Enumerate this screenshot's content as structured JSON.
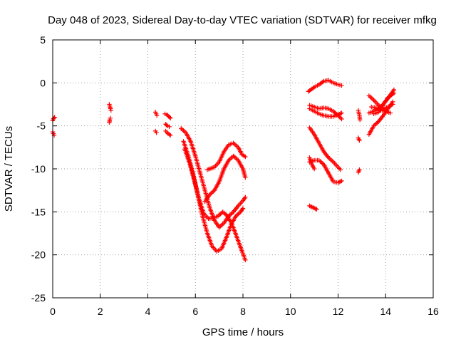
{
  "chart_data": {
    "type": "scatter",
    "title": "Day 048 of 2023, Sidereal Day-to-day VTEC variation (SDTVAR) for receiver mfkg",
    "xlabel": "GPS time / hours",
    "ylabel": "SDTVAR / TECUs",
    "xlim": [
      0,
      16
    ],
    "ylim": [
      -25,
      5
    ],
    "x_ticks": [
      0,
      2,
      4,
      6,
      8,
      10,
      12,
      14,
      16
    ],
    "y_ticks": [
      -25,
      -20,
      -15,
      -10,
      -5,
      0,
      5
    ],
    "x_tick_labels": [
      "0",
      "2",
      "4",
      "6",
      "8",
      "10",
      "12",
      "14",
      "16"
    ],
    "y_tick_labels": [
      "-25",
      "-20",
      "-15",
      "-10",
      "-5",
      "0",
      "5"
    ],
    "grid": true,
    "marker": "plus",
    "color": "#ff0000",
    "segments": [
      [
        [
          0.0,
          -4.4
        ],
        [
          0.02,
          -4.2
        ],
        [
          0.05,
          -4.1
        ],
        [
          0.08,
          -4.0
        ]
      ],
      [
        [
          0.0,
          -5.7
        ],
        [
          0.03,
          -5.9
        ],
        [
          0.06,
          -6.1
        ]
      ],
      [
        [
          2.38,
          -4.6
        ],
        [
          2.4,
          -4.3
        ],
        [
          2.42,
          -4.1
        ]
      ],
      [
        [
          2.38,
          -2.5
        ],
        [
          2.4,
          -2.7
        ],
        [
          2.43,
          -3.0
        ],
        [
          2.45,
          -3.2
        ]
      ],
      [
        [
          4.32,
          -3.4
        ],
        [
          4.35,
          -3.6
        ],
        [
          4.38,
          -3.8
        ]
      ],
      [
        [
          4.32,
          -5.6
        ],
        [
          4.36,
          -5.8
        ]
      ],
      [
        [
          4.72,
          -3.6
        ],
        [
          4.8,
          -3.7
        ],
        [
          4.88,
          -3.9
        ],
        [
          4.95,
          -4.1
        ]
      ],
      [
        [
          4.75,
          -4.8
        ],
        [
          4.82,
          -5.0
        ],
        [
          4.9,
          -5.1
        ]
      ],
      [
        [
          4.75,
          -5.6
        ],
        [
          4.85,
          -5.9
        ],
        [
          4.95,
          -6.1
        ]
      ],
      [
        [
          5.4,
          -5.3
        ],
        [
          5.6,
          -5.8
        ],
        [
          5.8,
          -6.8
        ],
        [
          6.0,
          -8.5
        ],
        [
          6.2,
          -10.5
        ],
        [
          6.4,
          -12.5
        ],
        [
          6.6,
          -14.5
        ],
        [
          6.8,
          -16.0
        ],
        [
          7.0,
          -16.8
        ],
        [
          7.2,
          -16.3
        ],
        [
          7.4,
          -15.5
        ],
        [
          7.6,
          -15.0
        ],
        [
          7.8,
          -14.3
        ],
        [
          8.0,
          -13.7
        ],
        [
          8.1,
          -13.3
        ]
      ],
      [
        [
          5.5,
          -6.8
        ],
        [
          5.7,
          -8.5
        ],
        [
          5.9,
          -10.5
        ],
        [
          6.1,
          -13.0
        ],
        [
          6.3,
          -15.5
        ],
        [
          6.5,
          -17.5
        ],
        [
          6.7,
          -19.0
        ],
        [
          6.9,
          -19.6
        ],
        [
          7.1,
          -19.3
        ],
        [
          7.3,
          -18.0
        ],
        [
          7.5,
          -16.5
        ],
        [
          7.7,
          -15.5
        ],
        [
          7.9,
          -15.0
        ],
        [
          8.0,
          -14.6
        ]
      ],
      [
        [
          5.55,
          -7.7
        ],
        [
          5.75,
          -9.3
        ],
        [
          5.95,
          -11.3
        ],
        [
          6.15,
          -13.5
        ],
        [
          6.35,
          -15.2
        ],
        [
          6.55,
          -15.8
        ],
        [
          6.75,
          -15.7
        ],
        [
          6.95,
          -15.5
        ],
        [
          7.15,
          -15.0
        ],
        [
          7.35,
          -15.5
        ],
        [
          7.55,
          -16.5
        ],
        [
          7.75,
          -18.0
        ],
        [
          7.95,
          -19.5
        ],
        [
          8.1,
          -20.6
        ]
      ],
      [
        [
          6.5,
          -10.1
        ],
        [
          6.8,
          -9.8
        ],
        [
          7.0,
          -9.2
        ],
        [
          7.2,
          -8.0
        ],
        [
          7.4,
          -7.2
        ],
        [
          7.6,
          -7.0
        ],
        [
          7.8,
          -7.5
        ],
        [
          7.95,
          -8.3
        ],
        [
          8.1,
          -8.6
        ]
      ],
      [
        [
          6.4,
          -13.8
        ],
        [
          6.6,
          -13.0
        ],
        [
          6.8,
          -12.5
        ],
        [
          7.0,
          -11.5
        ],
        [
          7.2,
          -10.0
        ],
        [
          7.4,
          -9.0
        ],
        [
          7.6,
          -8.5
        ],
        [
          7.8,
          -9.0
        ],
        [
          8.0,
          -10.0
        ],
        [
          8.1,
          -11.0
        ]
      ],
      [
        [
          10.75,
          -1.0
        ],
        [
          11.0,
          -0.5
        ],
        [
          11.2,
          -0.2
        ],
        [
          11.4,
          0.2
        ],
        [
          11.6,
          0.3
        ],
        [
          11.8,
          0.0
        ],
        [
          12.0,
          -0.2
        ],
        [
          12.15,
          -0.3
        ]
      ],
      [
        [
          10.8,
          -2.6
        ],
        [
          11.0,
          -2.8
        ],
        [
          11.2,
          -3.0
        ],
        [
          11.4,
          -2.9
        ],
        [
          11.6,
          -3.0
        ],
        [
          11.8,
          -3.3
        ],
        [
          12.0,
          -3.8
        ],
        [
          12.15,
          -4.2
        ]
      ],
      [
        [
          10.8,
          -3.0
        ],
        [
          11.0,
          -3.3
        ],
        [
          11.2,
          -3.6
        ],
        [
          11.4,
          -3.8
        ],
        [
          11.6,
          -3.9
        ],
        [
          11.8,
          -3.9
        ],
        [
          12.0,
          -3.7
        ],
        [
          12.15,
          -3.5
        ]
      ],
      [
        [
          10.8,
          -5.2
        ],
        [
          11.0,
          -6.0
        ],
        [
          11.2,
          -7.0
        ],
        [
          11.4,
          -8.0
        ],
        [
          11.6,
          -8.7
        ],
        [
          11.8,
          -9.2
        ],
        [
          12.0,
          -9.8
        ],
        [
          12.1,
          -10.1
        ]
      ],
      [
        [
          10.8,
          -9.2
        ],
        [
          11.0,
          -9.0
        ],
        [
          11.2,
          -9.0
        ],
        [
          11.4,
          -9.5
        ],
        [
          11.6,
          -10.5
        ],
        [
          11.8,
          -11.5
        ],
        [
          12.0,
          -11.6
        ],
        [
          12.15,
          -11.4
        ]
      ],
      [
        [
          10.8,
          -8.7
        ],
        [
          10.9,
          -9.5
        ],
        [
          11.0,
          -10.0
        ]
      ],
      [
        [
          10.8,
          -14.3
        ],
        [
          10.95,
          -14.5
        ],
        [
          11.1,
          -14.7
        ]
      ],
      [
        [
          12.85,
          -3.2
        ],
        [
          12.9,
          -3.8
        ],
        [
          12.92,
          -4.3
        ]
      ],
      [
        [
          12.85,
          -6.4
        ],
        [
          12.9,
          -6.7
        ]
      ],
      [
        [
          12.85,
          -10.4
        ],
        [
          12.9,
          -10.1
        ]
      ],
      [
        [
          13.3,
          -6.0
        ],
        [
          13.5,
          -5.0
        ],
        [
          13.7,
          -4.5
        ],
        [
          13.9,
          -3.8
        ],
        [
          14.1,
          -3.0
        ],
        [
          14.3,
          -2.2
        ]
      ],
      [
        [
          13.3,
          -3.5
        ],
        [
          13.5,
          -3.3
        ],
        [
          13.7,
          -3.0
        ],
        [
          13.9,
          -2.5
        ],
        [
          14.1,
          -1.8
        ],
        [
          14.35,
          -0.8
        ]
      ],
      [
        [
          13.3,
          -1.5
        ],
        [
          13.5,
          -2.0
        ],
        [
          13.7,
          -2.6
        ],
        [
          13.9,
          -3.0
        ],
        [
          14.1,
          -2.8
        ],
        [
          14.3,
          -2.5
        ]
      ],
      [
        [
          13.4,
          -2.8
        ],
        [
          13.6,
          -2.9
        ],
        [
          13.8,
          -3.2
        ],
        [
          14.0,
          -3.3
        ],
        [
          14.2,
          -3.5
        ]
      ],
      [
        [
          13.5,
          -3.6
        ],
        [
          13.7,
          -3.4
        ],
        [
          13.9,
          -2.5
        ],
        [
          14.1,
          -1.7
        ],
        [
          14.35,
          -1.2
        ]
      ]
    ]
  }
}
